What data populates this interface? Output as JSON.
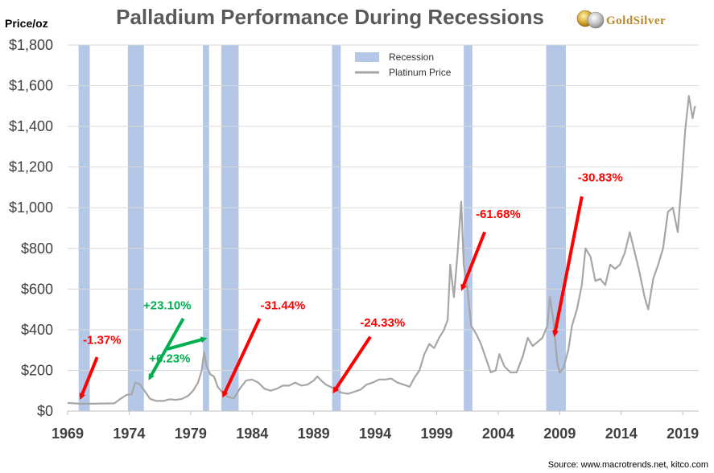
{
  "logo": {
    "text": "GoldSilver"
  },
  "source": "Source: www.macrotrends.net, kitco.com",
  "chart_data": {
    "type": "line",
    "title": "Palladium Performance During Recessions",
    "ylabel": "Price/oz",
    "xlim": [
      1969,
      2020.3
    ],
    "ylim": [
      0,
      1800
    ],
    "y_ticks": [
      0,
      200,
      400,
      600,
      800,
      1000,
      1200,
      1400,
      1600,
      1800
    ],
    "y_tick_labels": [
      "$0",
      "$200",
      "$400",
      "$600",
      "$800",
      "$1,000",
      "$1,200",
      "$1,400",
      "$1,600",
      "$1,800"
    ],
    "x_ticks": [
      1969,
      1974,
      1979,
      1984,
      1989,
      1994,
      1999,
      2004,
      2009,
      2014,
      2019
    ],
    "x_tick_labels": [
      "1969",
      "1974",
      "1979",
      "1984",
      "1989",
      "1994",
      "1999",
      "2004",
      "2009",
      "2014",
      "2019"
    ],
    "grid": "horizontal",
    "legend_position": "top-center",
    "legend": [
      {
        "label": "Recession",
        "color": "#b4c7e7"
      },
      {
        "label": "Platinum Price",
        "color": "#a6a6a6"
      }
    ],
    "recessions": [
      {
        "start": 1969.9,
        "end": 1970.8
      },
      {
        "start": 1973.9,
        "end": 1975.2
      },
      {
        "start": 1980.0,
        "end": 1980.5
      },
      {
        "start": 1981.5,
        "end": 1982.9
      },
      {
        "start": 1990.5,
        "end": 1991.2
      },
      {
        "start": 2001.2,
        "end": 2001.9
      },
      {
        "start": 2007.9,
        "end": 2009.5
      }
    ],
    "series": [
      {
        "name": "Platinum Price",
        "color": "#a6a6a6",
        "points": [
          [
            1969.0,
            40
          ],
          [
            1969.5,
            38
          ],
          [
            1970.0,
            36
          ],
          [
            1970.5,
            36
          ],
          [
            1971.0,
            36
          ],
          [
            1972.0,
            37
          ],
          [
            1972.8,
            38
          ],
          [
            1973.3,
            60
          ],
          [
            1973.8,
            80
          ],
          [
            1974.2,
            82
          ],
          [
            1974.5,
            140
          ],
          [
            1974.9,
            130
          ],
          [
            1975.3,
            95
          ],
          [
            1975.7,
            60
          ],
          [
            1976.2,
            50
          ],
          [
            1976.8,
            50
          ],
          [
            1977.3,
            58
          ],
          [
            1977.8,
            55
          ],
          [
            1978.3,
            60
          ],
          [
            1978.8,
            75
          ],
          [
            1979.2,
            100
          ],
          [
            1979.6,
            140
          ],
          [
            1979.9,
            200
          ],
          [
            1980.1,
            290
          ],
          [
            1980.3,
            220
          ],
          [
            1980.6,
            180
          ],
          [
            1980.9,
            170
          ],
          [
            1981.2,
            120
          ],
          [
            1981.6,
            90
          ],
          [
            1982.0,
            70
          ],
          [
            1982.5,
            62
          ],
          [
            1983.0,
            110
          ],
          [
            1983.5,
            150
          ],
          [
            1984.0,
            155
          ],
          [
            1984.5,
            140
          ],
          [
            1985.0,
            110
          ],
          [
            1985.5,
            100
          ],
          [
            1986.0,
            110
          ],
          [
            1986.5,
            125
          ],
          [
            1987.0,
            125
          ],
          [
            1987.5,
            140
          ],
          [
            1988.0,
            125
          ],
          [
            1988.5,
            130
          ],
          [
            1989.0,
            150
          ],
          [
            1989.3,
            170
          ],
          [
            1989.7,
            145
          ],
          [
            1990.0,
            130
          ],
          [
            1990.5,
            115
          ],
          [
            1990.9,
            100
          ],
          [
            1991.3,
            90
          ],
          [
            1991.8,
            85
          ],
          [
            1992.3,
            95
          ],
          [
            1992.8,
            105
          ],
          [
            1993.3,
            130
          ],
          [
            1993.8,
            140
          ],
          [
            1994.3,
            155
          ],
          [
            1994.8,
            155
          ],
          [
            1995.3,
            160
          ],
          [
            1995.8,
            140
          ],
          [
            1996.3,
            130
          ],
          [
            1996.8,
            120
          ],
          [
            1997.2,
            165
          ],
          [
            1997.6,
            200
          ],
          [
            1998.0,
            280
          ],
          [
            1998.4,
            330
          ],
          [
            1998.8,
            310
          ],
          [
            1999.2,
            360
          ],
          [
            1999.6,
            400
          ],
          [
            1999.9,
            450
          ],
          [
            2000.1,
            720
          ],
          [
            2000.4,
            560
          ],
          [
            2000.7,
            780
          ],
          [
            2001.0,
            1030
          ],
          [
            2001.2,
            720
          ],
          [
            2001.5,
            600
          ],
          [
            2001.8,
            420
          ],
          [
            2002.2,
            380
          ],
          [
            2002.6,
            330
          ],
          [
            2003.0,
            260
          ],
          [
            2003.4,
            190
          ],
          [
            2003.8,
            200
          ],
          [
            2004.1,
            280
          ],
          [
            2004.5,
            220
          ],
          [
            2005.0,
            190
          ],
          [
            2005.5,
            190
          ],
          [
            2006.0,
            270
          ],
          [
            2006.4,
            360
          ],
          [
            2006.8,
            320
          ],
          [
            2007.2,
            340
          ],
          [
            2007.6,
            360
          ],
          [
            2008.0,
            420
          ],
          [
            2008.2,
            560
          ],
          [
            2008.5,
            440
          ],
          [
            2008.8,
            240
          ],
          [
            2009.0,
            190
          ],
          [
            2009.3,
            210
          ],
          [
            2009.7,
            300
          ],
          [
            2010.0,
            420
          ],
          [
            2010.4,
            500
          ],
          [
            2010.8,
            620
          ],
          [
            2011.1,
            800
          ],
          [
            2011.5,
            760
          ],
          [
            2011.9,
            640
          ],
          [
            2012.3,
            650
          ],
          [
            2012.7,
            620
          ],
          [
            2013.1,
            720
          ],
          [
            2013.5,
            700
          ],
          [
            2013.9,
            720
          ],
          [
            2014.3,
            780
          ],
          [
            2014.7,
            880
          ],
          [
            2015.1,
            780
          ],
          [
            2015.5,
            680
          ],
          [
            2015.9,
            560
          ],
          [
            2016.2,
            500
          ],
          [
            2016.6,
            650
          ],
          [
            2017.0,
            720
          ],
          [
            2017.4,
            800
          ],
          [
            2017.8,
            980
          ],
          [
            2018.2,
            1000
          ],
          [
            2018.6,
            880
          ],
          [
            2018.9,
            1120
          ],
          [
            2019.2,
            1380
          ],
          [
            2019.5,
            1550
          ],
          [
            2019.8,
            1440
          ],
          [
            2020.0,
            1500
          ]
        ]
      }
    ],
    "annotations": [
      {
        "text": "-1.37%",
        "color": "#ff0000",
        "x": 1971.8,
        "y": 330,
        "arrow_from": [
          1971.4,
          265
        ],
        "arrow_to": [
          1970.1,
          70
        ]
      },
      {
        "text": "+23.10%",
        "color": "#00b050",
        "x": 1977.1,
        "y": 500,
        "arrow_from": [
          1978.4,
          455
        ],
        "arrow_to": [
          1975.7,
          165
        ]
      },
      {
        "text": "+6.23%",
        "color": "#00b050",
        "x": 1977.3,
        "y": 240,
        "arrow_from": [
          1977.1,
          305
        ],
        "arrow_to": [
          1980.1,
          355
        ]
      },
      {
        "text": "-31.44%",
        "color": "#ff0000",
        "x": 1986.5,
        "y": 500,
        "arrow_from": [
          1984.6,
          455
        ],
        "arrow_to": [
          1981.7,
          80
        ]
      },
      {
        "text": "-24.33%",
        "color": "#ff0000",
        "x": 1994.6,
        "y": 415,
        "arrow_from": [
          1993.6,
          365
        ],
        "arrow_to": [
          1990.7,
          100
        ]
      },
      {
        "text": "-61.68%",
        "color": "#ff0000",
        "x": 2004.0,
        "y": 950,
        "arrow_from": [
          2002.9,
          880
        ],
        "arrow_to": [
          2001.1,
          605
        ]
      },
      {
        "text": "-30.83%",
        "color": "#ff0000",
        "x": 2012.3,
        "y": 1130,
        "arrow_from": [
          2010.8,
          1055
        ],
        "arrow_to": [
          2008.6,
          380
        ]
      }
    ]
  }
}
